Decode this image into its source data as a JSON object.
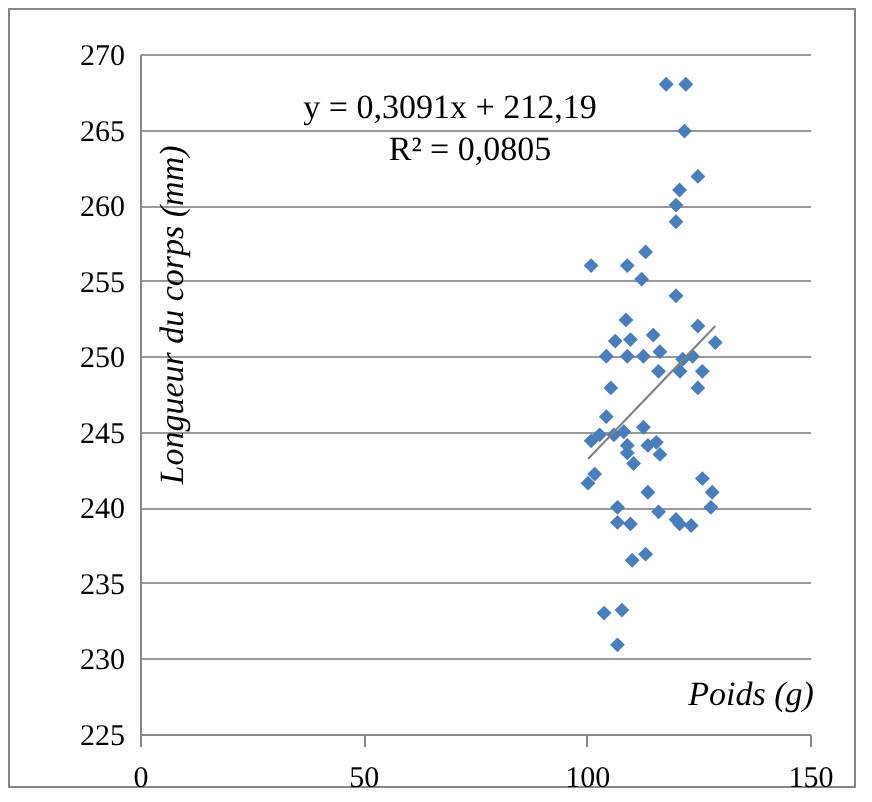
{
  "chart_data": {
    "type": "scatter",
    "xlabel": "Poids (g)",
    "ylabel": "Longueur du corps (mm)",
    "annotations": [
      "y = 0,3091x + 212,19",
      "R² = 0,0805"
    ],
    "xlim": [
      0,
      150
    ],
    "xticks": [
      0,
      50,
      100,
      150
    ],
    "ylim": [
      225,
      270
    ],
    "yticks": [
      225,
      230,
      235,
      240,
      245,
      250,
      255,
      260,
      265,
      270
    ],
    "grid": "y",
    "marker": "diamond",
    "series": [
      {
        "color": "#4a7ebb",
        "x": [
          117.8,
          122.2,
          121.9,
          124.9,
          120.8,
          120,
          120,
          113.2,
          101,
          109.1,
          112.3,
          120,
          108.8,
          124.9,
          106.4,
          109.8,
          114.9,
          128.8,
          104.4,
          109.1,
          112.7,
          116.4,
          121.5,
          123.7,
          116.1,
          120.9,
          125.9,
          124.9,
          105.4,
          104.4,
          101,
          102.9,
          106.1,
          108.3,
          112.7,
          109.1,
          113.7,
          115.6,
          116.4,
          110.5,
          109.1,
          101.8,
          100.3,
          113.7,
          125.9,
          128.1,
          127.8,
          106.9,
          116.1,
          106.9,
          109.8,
          120,
          120.8,
          123.4,
          110.2,
          113.2,
          103.9,
          107.9,
          106.9
        ],
        "values": [
          268,
          268,
          264.9,
          261.9,
          261,
          260,
          258.9,
          256.9,
          256,
          256,
          255.1,
          254,
          252.4,
          252,
          251,
          251.1,
          251.4,
          250.9,
          250,
          250,
          250,
          250.3,
          249.8,
          250,
          249,
          249,
          249,
          247.9,
          247.9,
          246,
          244.4,
          244.8,
          244.8,
          245,
          245.3,
          244.1,
          244.1,
          244.3,
          243.5,
          242.9,
          243.6,
          242.2,
          241.6,
          241,
          241.9,
          241,
          240,
          240,
          239.7,
          239,
          238.9,
          239.2,
          238.9,
          238.8,
          236.5,
          236.9,
          233,
          233.2,
          230.9
        ]
      },
      {
        "type": "line",
        "marker": "none",
        "color": "#808080",
        "x": [
          100.3,
          128.8
        ],
        "values": [
          243.2,
          252
        ]
      }
    ]
  }
}
